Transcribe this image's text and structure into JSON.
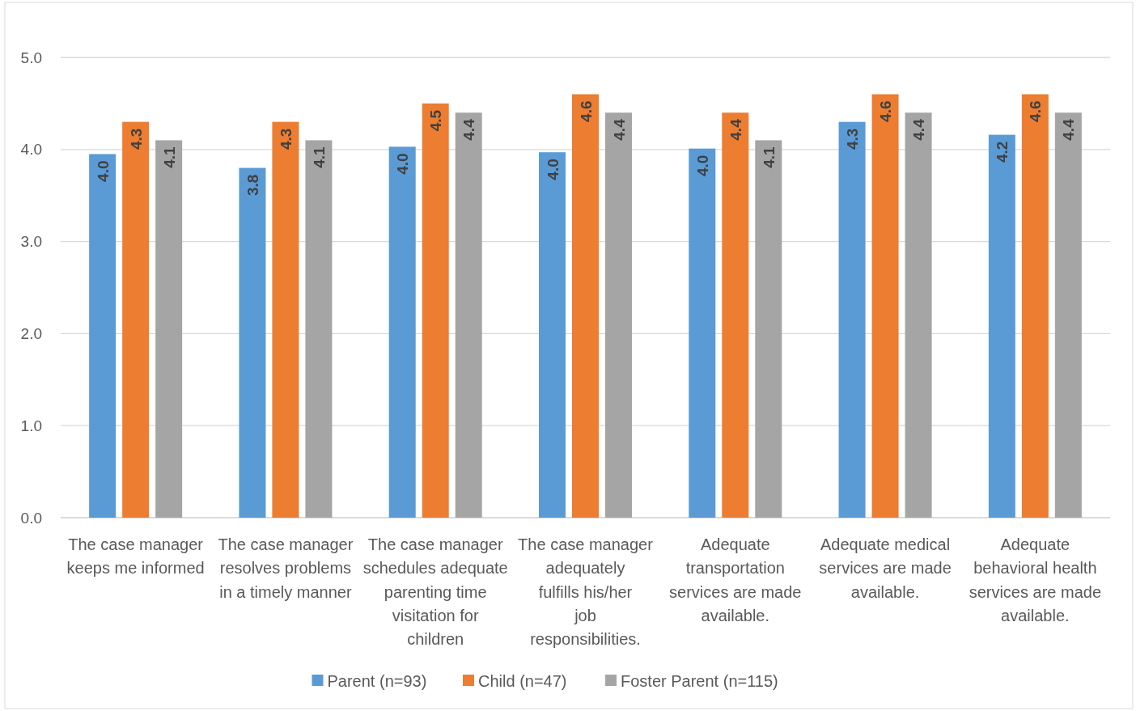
{
  "chart_data": {
    "type": "bar",
    "categories": [
      "The case manager keeps me informed",
      "The case manager resolves problems in a timely manner",
      "The case manager schedules adequate parenting time visitation for children",
      "The case manager adequately fulfills his/her job responsibilities.",
      "Adequate transportation services are made available.",
      "Adequate medical services are made available.",
      "Adequate behavioral health services are made available."
    ],
    "series": [
      {
        "name": "Parent (n=93)",
        "color": "#5b9bd5",
        "values": [
          3.95,
          3.8,
          4.03,
          3.97,
          4.01,
          4.3,
          4.16
        ],
        "value_labels": [
          "4.0",
          "3.8",
          "4.0",
          "4.0",
          "4.0",
          "4.3",
          "4.2"
        ]
      },
      {
        "name": "Child (n=47)",
        "color": "#ed7d31",
        "values": [
          4.3,
          4.3,
          4.5,
          4.6,
          4.4,
          4.6,
          4.6
        ],
        "value_labels": [
          "4.3",
          "4.3",
          "4.5",
          "4.6",
          "4.4",
          "4.6",
          "4.6"
        ]
      },
      {
        "name": "Foster Parent (n=115)",
        "color": "#a5a5a5",
        "values": [
          4.1,
          4.1,
          4.4,
          4.4,
          4.1,
          4.4,
          4.4
        ],
        "value_labels": [
          "4.1",
          "4.1",
          "4.4",
          "4.4",
          "4.1",
          "4.4",
          "4.4"
        ]
      }
    ],
    "ylim": [
      0,
      5
    ],
    "yticks": [
      {
        "value": 0,
        "label": "0.0"
      },
      {
        "value": 1,
        "label": "1.0"
      },
      {
        "value": 2,
        "label": "2.0"
      },
      {
        "value": 3,
        "label": "3.0"
      },
      {
        "value": 4,
        "label": "4.0"
      },
      {
        "value": 5,
        "label": "5.0"
      }
    ],
    "grid": "y",
    "legend": "bottom"
  }
}
